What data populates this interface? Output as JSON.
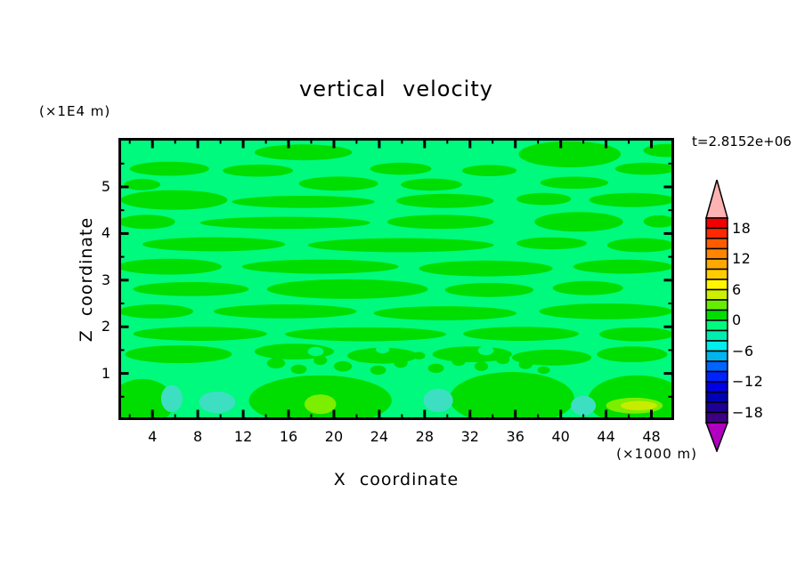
{
  "chart_data": {
    "type": "heatmap",
    "title": "vertical velocity",
    "xlabel": "X coordinate",
    "x_unit": "(×1000 m)",
    "ylabel": "Z coordinate",
    "y_unit": "(×1E4 m)",
    "annotation": "t=2.8152e+06",
    "xlim": [
      1,
      50
    ],
    "zlim": [
      0,
      6.05
    ],
    "x_ticks": [
      4,
      8,
      12,
      16,
      20,
      24,
      28,
      32,
      36,
      40,
      44,
      48
    ],
    "x_minor_tick_step": 2,
    "z_ticks": [
      5,
      4,
      3,
      2,
      1
    ],
    "z_minor_tick_step": 0.5,
    "grid": false,
    "colorbar": {
      "position": "right",
      "range": [
        -20,
        20
      ],
      "segment_step": 2,
      "labels": [
        18,
        12,
        6,
        0,
        -6,
        -12,
        -18
      ],
      "segments_top_to_bottom": [
        "#f20000",
        "#ff2800",
        "#ff5c00",
        "#ff8400",
        "#ffa800",
        "#ffcc00",
        "#fff600",
        "#ccf000",
        "#66ee00",
        "#00dd00",
        "#00fa7d",
        "#00eeb0",
        "#00eeee",
        "#00b4f0",
        "#0064ff",
        "#0022ff",
        "#0000e6",
        "#0000b4",
        "#1e0096",
        "#3c0082"
      ],
      "over_arrow_color": "#ffb2b2",
      "under_arrow_color": "#b000c0"
    },
    "palette": {
      "green": "#00dd00",
      "spring": "#00fa7d",
      "teal": "#3ddfc2",
      "lgreen": "#7cee00",
      "chartreuse": "#c8ec00"
    },
    "field_description": "Vertical velocity fluctuating around 0: background band -2..0 (spring green) with elongated horizontal 0..+2 (green) streaks, turbulent speckle near z=1-1.5, and small -4..-2 (teal) and +2..+6 (yellow-green) pockets near the lower boundary.",
    "field_blobs": [
      [
        17.3,
        5.74,
        4.3,
        0.17,
        "green"
      ],
      [
        40.8,
        5.7,
        4.5,
        0.28,
        "green"
      ],
      [
        49.3,
        5.78,
        2.0,
        0.14,
        "green"
      ],
      [
        5.5,
        5.39,
        3.5,
        0.15,
        "green"
      ],
      [
        13.3,
        5.35,
        3.1,
        0.13,
        "green"
      ],
      [
        25.9,
        5.39,
        2.7,
        0.13,
        "green"
      ],
      [
        33.7,
        5.35,
        2.4,
        0.12,
        "green"
      ],
      [
        47.5,
        5.39,
        2.7,
        0.13,
        "green"
      ],
      [
        20.4,
        5.07,
        3.5,
        0.15,
        "green"
      ],
      [
        28.6,
        5.05,
        2.7,
        0.13,
        "green"
      ],
      [
        41.2,
        5.09,
        3.0,
        0.13,
        "green"
      ],
      [
        3.1,
        5.05,
        1.6,
        0.12,
        "green"
      ],
      [
        5.9,
        4.72,
        4.7,
        0.21,
        "green"
      ],
      [
        17.3,
        4.68,
        6.3,
        0.13,
        "green"
      ],
      [
        29.8,
        4.7,
        4.3,
        0.15,
        "green"
      ],
      [
        38.5,
        4.74,
        2.4,
        0.13,
        "green"
      ],
      [
        46.3,
        4.72,
        3.8,
        0.15,
        "green"
      ],
      [
        3.5,
        4.25,
        2.5,
        0.15,
        "green"
      ],
      [
        15.7,
        4.23,
        7.5,
        0.13,
        "green"
      ],
      [
        29.4,
        4.25,
        4.7,
        0.15,
        "green"
      ],
      [
        41.6,
        4.25,
        3.9,
        0.21,
        "green"
      ],
      [
        48.7,
        4.26,
        1.4,
        0.13,
        "green"
      ],
      [
        9.4,
        3.77,
        6.3,
        0.15,
        "green"
      ],
      [
        25.9,
        3.75,
        8.2,
        0.15,
        "green"
      ],
      [
        39.2,
        3.79,
        3.1,
        0.13,
        "green"
      ],
      [
        47.1,
        3.75,
        3.0,
        0.15,
        "green"
      ],
      [
        5.5,
        3.29,
        4.6,
        0.17,
        "green"
      ],
      [
        18.8,
        3.29,
        6.9,
        0.15,
        "green"
      ],
      [
        33.4,
        3.25,
        5.9,
        0.17,
        "green"
      ],
      [
        45.5,
        3.29,
        4.4,
        0.15,
        "green"
      ],
      [
        7.4,
        2.81,
        5.1,
        0.15,
        "green"
      ],
      [
        21.2,
        2.81,
        7.1,
        0.21,
        "green"
      ],
      [
        33.7,
        2.79,
        3.9,
        0.15,
        "green"
      ],
      [
        42.4,
        2.83,
        3.1,
        0.15,
        "green"
      ],
      [
        4.3,
        2.33,
        3.3,
        0.15,
        "green"
      ],
      [
        15.7,
        2.33,
        6.3,
        0.15,
        "green"
      ],
      [
        29.8,
        2.29,
        6.3,
        0.15,
        "green"
      ],
      [
        44.0,
        2.33,
        5.9,
        0.17,
        "green"
      ],
      [
        8.2,
        1.85,
        5.9,
        0.15,
        "green"
      ],
      [
        22.8,
        1.84,
        7.1,
        0.15,
        "green"
      ],
      [
        36.5,
        1.85,
        5.1,
        0.15,
        "green"
      ],
      [
        46.7,
        1.84,
        3.3,
        0.15,
        "green"
      ],
      [
        6.3,
        1.41,
        4.7,
        0.19,
        "green"
      ],
      [
        16.5,
        1.47,
        3.5,
        0.17,
        "green"
      ],
      [
        24.3,
        1.38,
        3.1,
        0.17,
        "green"
      ],
      [
        32.2,
        1.41,
        3.5,
        0.17,
        "green"
      ],
      [
        39.2,
        1.34,
        3.5,
        0.17,
        "green"
      ],
      [
        46.3,
        1.41,
        3.1,
        0.17,
        "green"
      ],
      [
        14.9,
        1.22,
        0.8,
        0.11,
        "green"
      ],
      [
        16.9,
        1.09,
        0.7,
        0.1,
        "green"
      ],
      [
        18.8,
        1.28,
        0.6,
        0.1,
        "green"
      ],
      [
        20.8,
        1.15,
        0.8,
        0.11,
        "green"
      ],
      [
        22.4,
        1.34,
        0.6,
        0.1,
        "green"
      ],
      [
        23.9,
        1.07,
        0.7,
        0.1,
        "green"
      ],
      [
        25.9,
        1.22,
        0.6,
        0.1,
        "green"
      ],
      [
        27.5,
        1.38,
        0.55,
        0.08,
        "green"
      ],
      [
        29.0,
        1.11,
        0.7,
        0.1,
        "green"
      ],
      [
        31.0,
        1.26,
        0.6,
        0.1,
        "green"
      ],
      [
        33.0,
        1.15,
        0.6,
        0.1,
        "green"
      ],
      [
        34.9,
        1.3,
        0.6,
        0.1,
        "green"
      ],
      [
        36.9,
        1.19,
        0.6,
        0.1,
        "green"
      ],
      [
        38.5,
        1.07,
        0.55,
        0.08,
        "green"
      ],
      [
        18.4,
        1.47,
        0.7,
        0.1,
        "spring"
      ],
      [
        27.5,
        1.15,
        0.6,
        0.1,
        "spring"
      ],
      [
        33.4,
        1.49,
        0.7,
        0.1,
        "spring"
      ],
      [
        24.3,
        1.51,
        0.6,
        0.08,
        "spring"
      ],
      [
        3.1,
        0.38,
        2.8,
        0.5,
        "green"
      ],
      [
        18.8,
        0.42,
        6.3,
        0.54,
        "green"
      ],
      [
        35.7,
        0.46,
        5.5,
        0.57,
        "green"
      ],
      [
        46.7,
        0.42,
        4.3,
        0.54,
        "green"
      ],
      [
        5.7,
        0.46,
        0.94,
        0.29,
        "teal"
      ],
      [
        9.7,
        0.38,
        1.6,
        0.23,
        "teal"
      ],
      [
        29.2,
        0.42,
        1.3,
        0.25,
        "teal"
      ],
      [
        42.0,
        0.31,
        1.1,
        0.21,
        "teal"
      ],
      [
        18.8,
        0.34,
        1.4,
        0.21,
        "lgreen"
      ],
      [
        46.5,
        0.31,
        2.5,
        0.17,
        "lgreen"
      ],
      [
        46.9,
        0.31,
        1.6,
        0.1,
        "chartreuse"
      ]
    ]
  }
}
